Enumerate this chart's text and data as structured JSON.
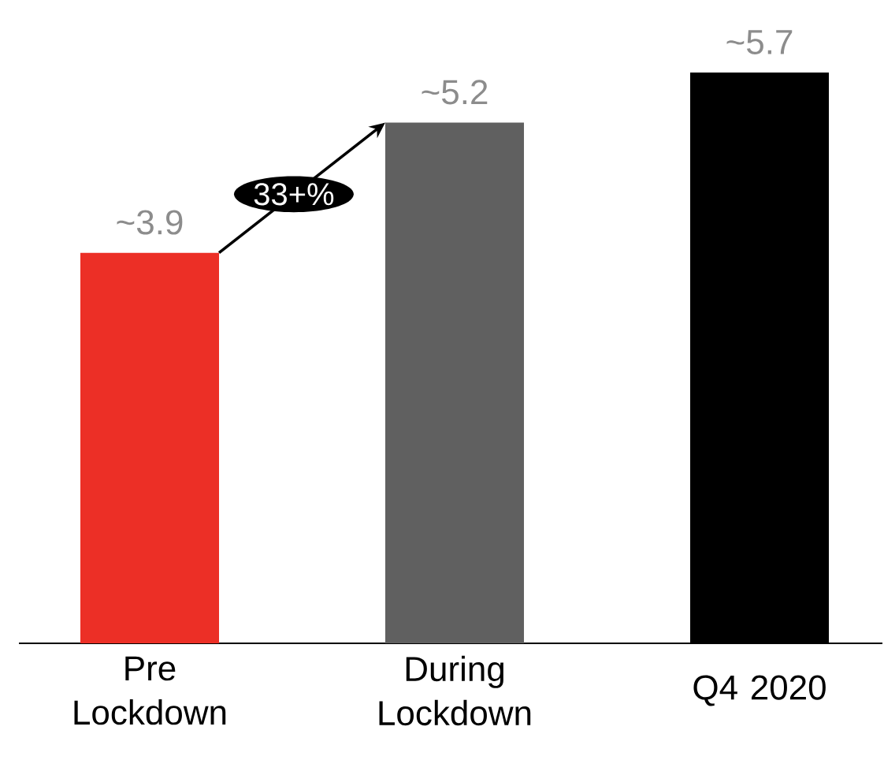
{
  "chart_data": {
    "type": "bar",
    "categories": [
      "Pre Lockdown",
      "During Lockdown",
      "Q4 2020"
    ],
    "values": [
      3.9,
      5.2,
      5.7
    ],
    "colors": [
      "#ec2f26",
      "#606060",
      "#000000"
    ],
    "value_labels": [
      "~3.9",
      "~5.2",
      "~5.7"
    ],
    "annotations": [
      "33+%"
    ]
  }
}
